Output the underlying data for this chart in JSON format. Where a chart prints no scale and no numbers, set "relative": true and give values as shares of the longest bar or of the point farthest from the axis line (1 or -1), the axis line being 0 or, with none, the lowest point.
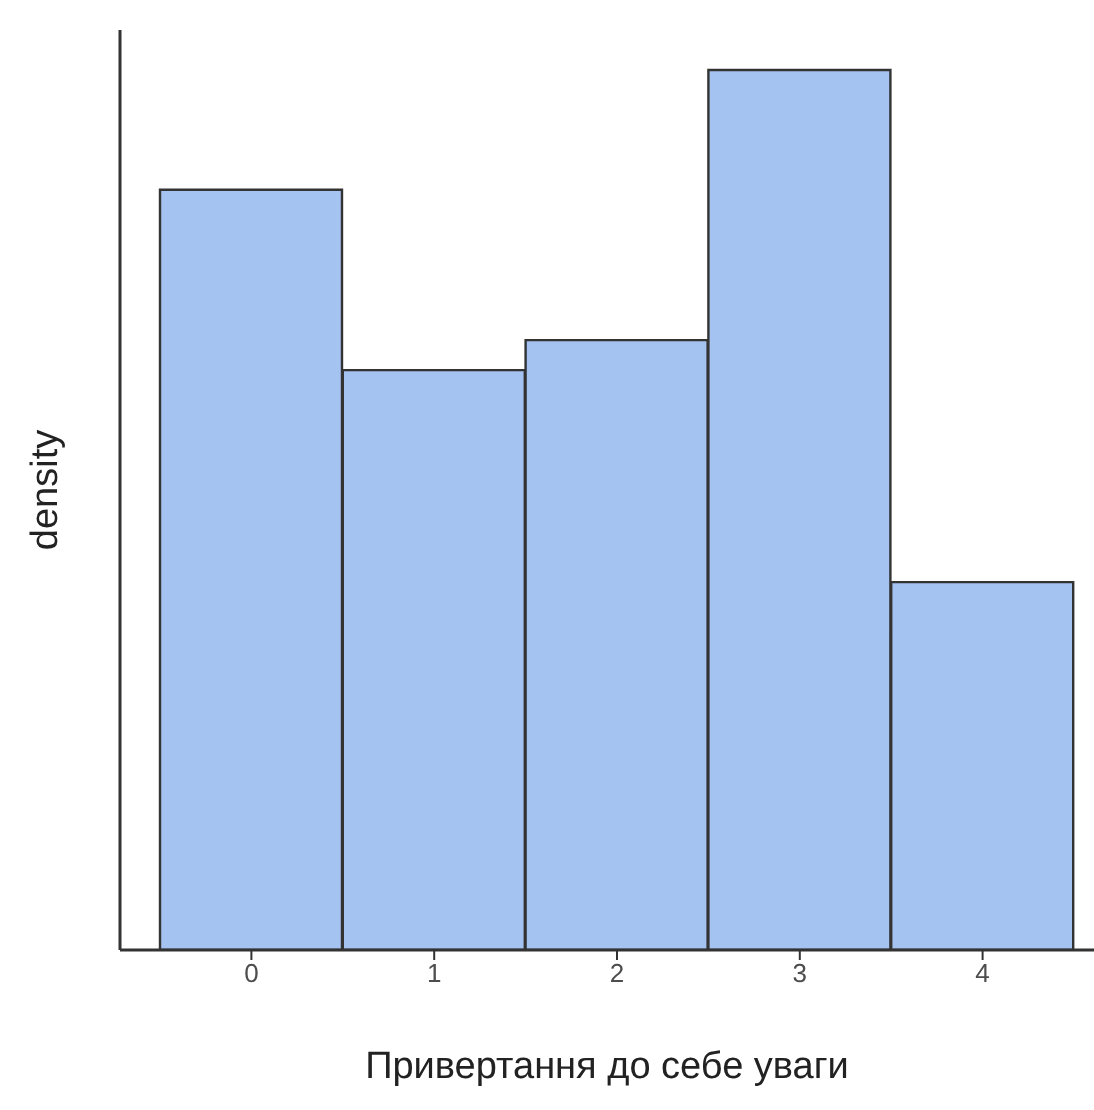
{
  "chart_data": {
    "type": "bar",
    "xlabel": "Привертання до себе уваги",
    "ylabel": "density",
    "relative": true,
    "categories": [
      "0",
      "1",
      "2",
      "3",
      "4"
    ],
    "values": [
      0.864,
      0.659,
      0.693,
      1,
      0.418
    ],
    "color": "#a4c3f0"
  }
}
